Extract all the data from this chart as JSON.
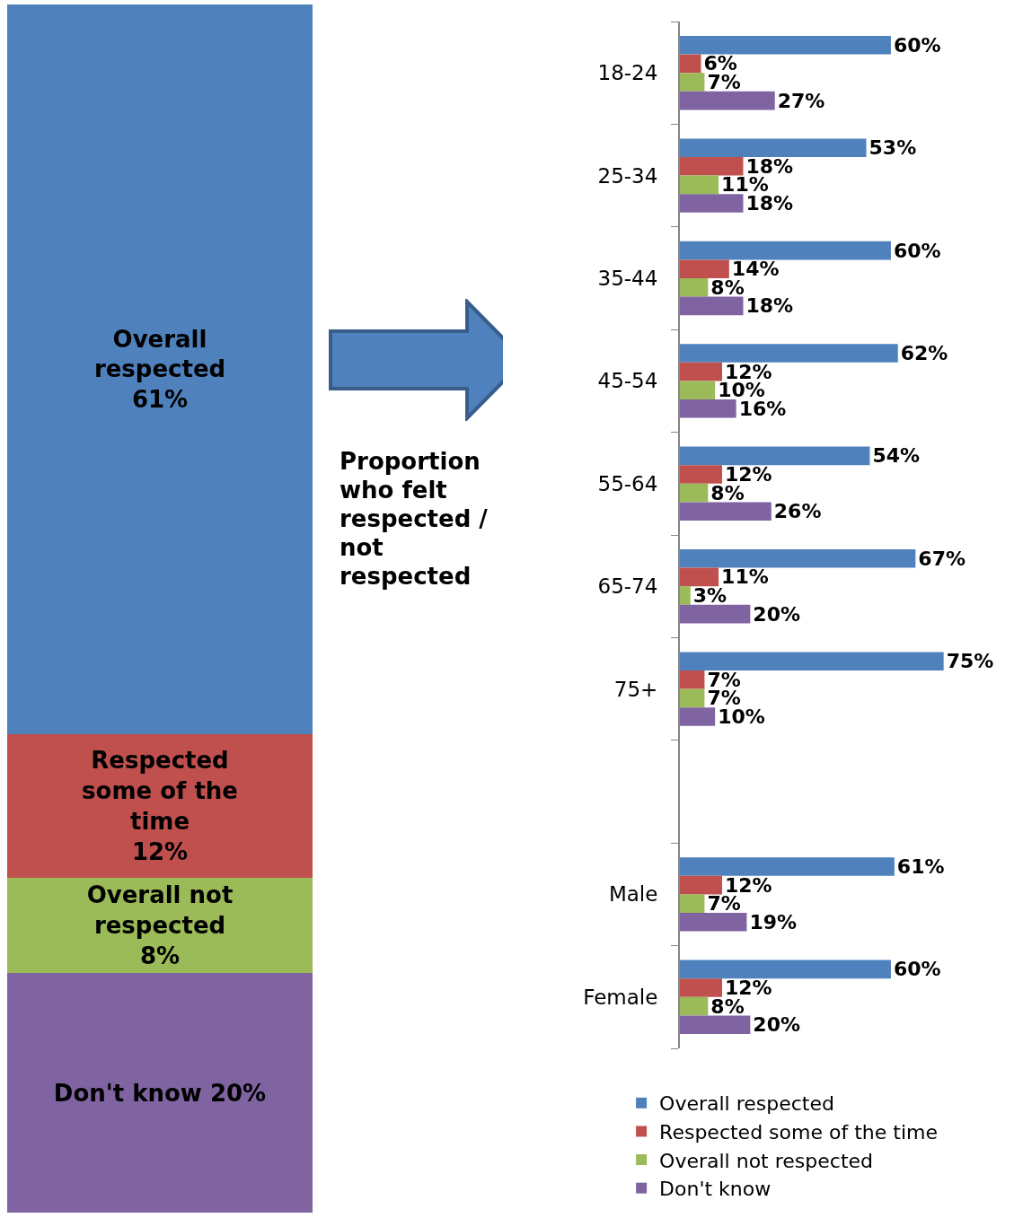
{
  "chart_data": [
    {
      "type": "bar",
      "stacked": true,
      "categories": [
        null
      ],
      "tick_labels": false,
      "legend": false,
      "annotations": [
        "Proportion who felt respected / not respected"
      ],
      "series": [
        {
          "name": "Don't know",
          "color": "#8064a2",
          "values": [
            20
          ],
          "value_labels": [
            "20%"
          ]
        },
        {
          "name": "Overall not respected",
          "color": "#9bbb59",
          "values": [
            8
          ],
          "value_labels": [
            "8%"
          ]
        },
        {
          "name": "Respected some of the time",
          "color": "#c0504d",
          "values": [
            12
          ],
          "value_labels": [
            "12%"
          ]
        },
        {
          "name": "Overall respected",
          "color": "#4f81bd",
          "values": [
            61
          ],
          "value_labels": [
            "61%"
          ]
        }
      ]
    },
    {
      "type": "bar",
      "orientation": "horizontal",
      "categories": [
        "18-24",
        "25-34",
        "35-44",
        "45-54",
        "55-64",
        "65-74",
        "75+",
        null,
        "Male",
        "Female"
      ],
      "tick_labels": "y",
      "legend": "bottom",
      "series": [
        {
          "name": "Overall respected",
          "color": "#4f81bd",
          "values": [
            60,
            53,
            60,
            62,
            54,
            67,
            75,
            null,
            61,
            60
          ],
          "value_labels": [
            "60%",
            "53%",
            "60%",
            "62%",
            "54%",
            "67%",
            "75%",
            null,
            "61%",
            "60%"
          ]
        },
        {
          "name": "Respected some of the time",
          "color": "#c0504d",
          "values": [
            6,
            18,
            14,
            12,
            12,
            11,
            7,
            null,
            12,
            12
          ],
          "value_labels": [
            "6%",
            "18%",
            "14%",
            "12%",
            "12%",
            "11%",
            "7%",
            null,
            "12%",
            "12%"
          ]
        },
        {
          "name": "Overall not respected",
          "color": "#9bbb59",
          "values": [
            7,
            11,
            8,
            10,
            8,
            3,
            7,
            null,
            7,
            8
          ],
          "value_labels": [
            "7%",
            "11%",
            "8%",
            "10%",
            "8%",
            "3%",
            "7%",
            null,
            "7%",
            "8%"
          ]
        },
        {
          "name": "Don't know",
          "color": "#8064a2",
          "values": [
            27,
            18,
            18,
            16,
            26,
            20,
            10,
            null,
            19,
            20
          ],
          "value_labels": [
            "27%",
            "18%",
            "18%",
            "16%",
            "26%",
            "20%",
            "10%",
            null,
            "19%",
            "20%"
          ]
        }
      ]
    }
  ]
}
